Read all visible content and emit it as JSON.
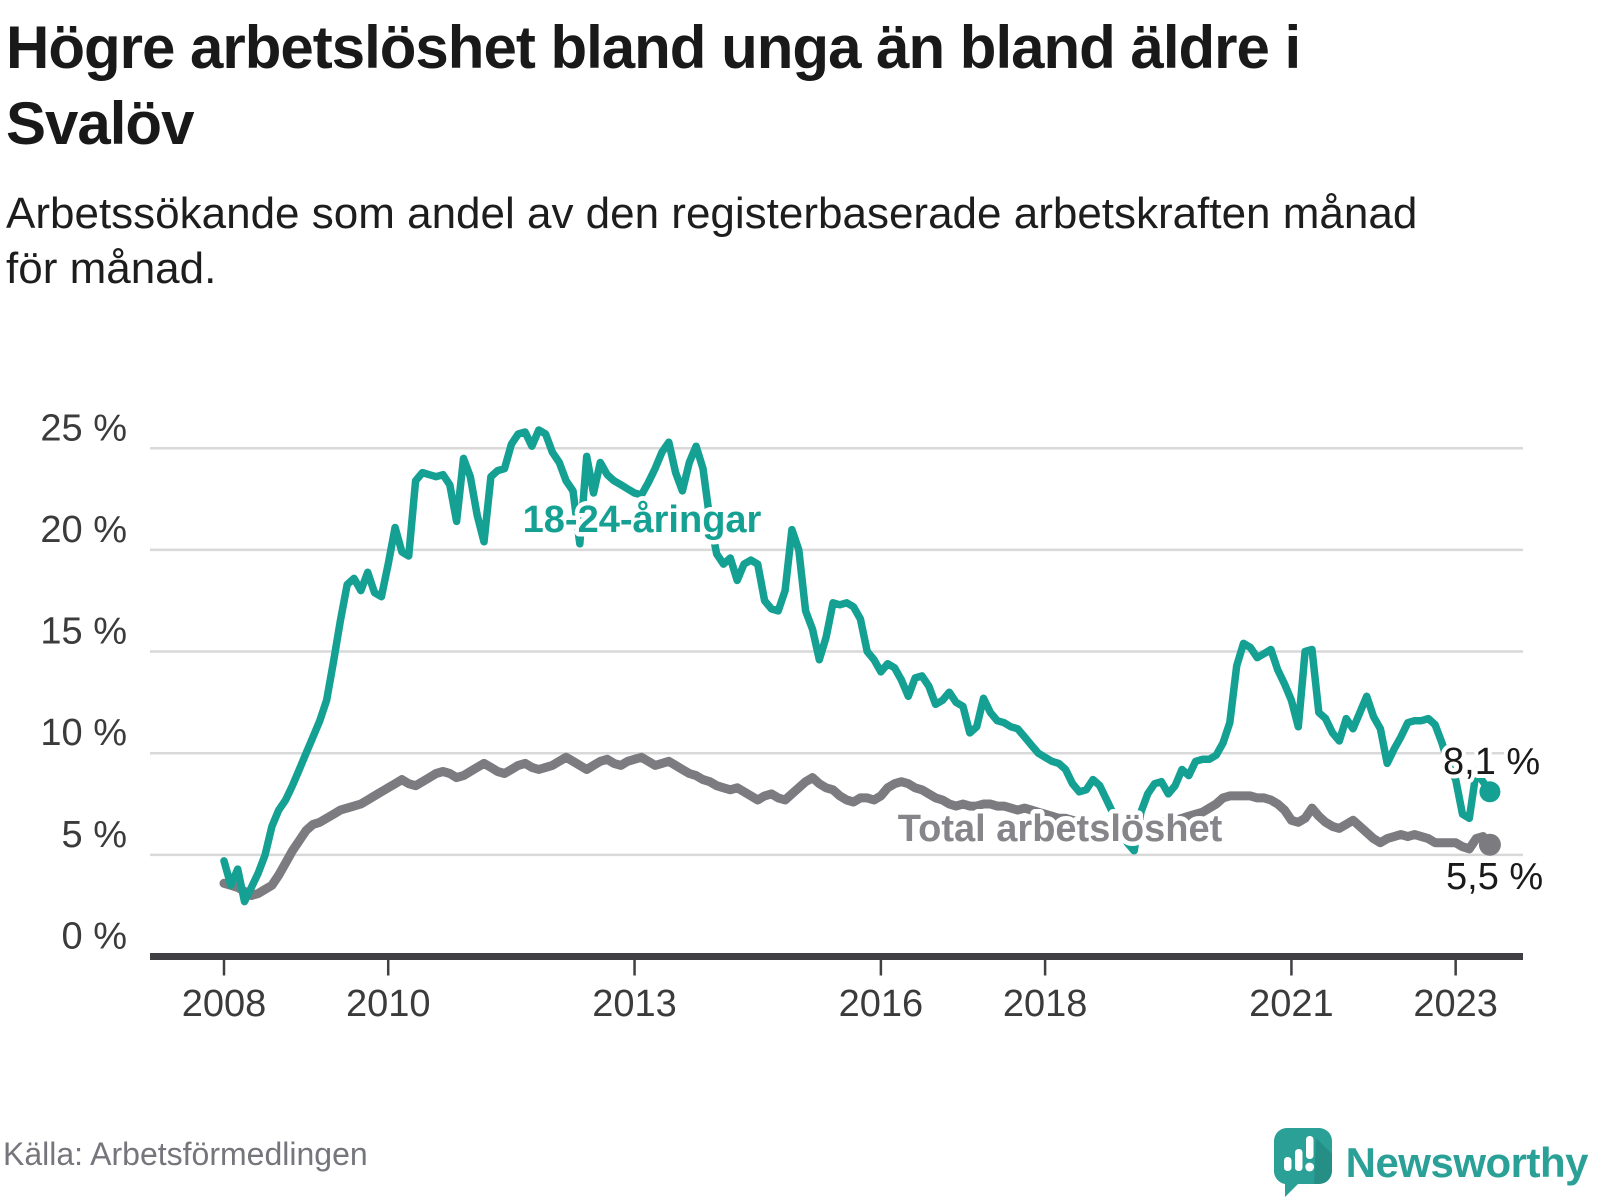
{
  "header": {
    "title_lines": [
      "Högre arbetslöshet bland unga än bland äldre i",
      "Svalöv"
    ],
    "subtitle_lines": [
      "Arbetssökande som andel av den registerbaserade arbetskraften månad",
      "för månad."
    ]
  },
  "footer": {
    "source": "Källa: Arbetsförmedlingen",
    "brand_name": "Newsworthy",
    "brand_color": "#2aa096"
  },
  "chart_data": {
    "type": "line",
    "x_start": {
      "year": 2008,
      "month": 1
    },
    "x_end": {
      "year": 2023,
      "month": 6
    },
    "x_tick_years": [
      2008,
      2010,
      2013,
      2016,
      2018,
      2021,
      2023
    ],
    "y_ticks": [
      {
        "value": 0,
        "label": "0 %"
      },
      {
        "value": 5,
        "label": "5 %"
      },
      {
        "value": 10,
        "label": "10 %"
      },
      {
        "value": 15,
        "label": "15 %"
      },
      {
        "value": 20,
        "label": "20 %"
      },
      {
        "value": 25,
        "label": "25 %"
      }
    ],
    "ylim": [
      0,
      26.5
    ],
    "grid": "horizontal",
    "colors": {
      "gridline": "#d9d9d9",
      "axis": "#3f3f44",
      "tick_label": "#3b3b3b",
      "end_label": "#1a1a1a"
    },
    "series": [
      {
        "name": "18-24-åringar",
        "color": "#14a092",
        "label_color": "#14a092",
        "end_label": "8,1 %",
        "end_value": 8.1,
        "values": [
          4.7,
          3.5,
          4.3,
          2.7,
          3.4,
          4.1,
          5.0,
          6.4,
          7.2,
          7.7,
          8.4,
          9.2,
          10.0,
          10.8,
          11.6,
          12.6,
          14.5,
          16.5,
          18.3,
          18.6,
          18.0,
          18.9,
          17.9,
          17.7,
          19.3,
          21.1,
          19.9,
          19.7,
          23.4,
          23.8,
          23.7,
          23.6,
          23.7,
          23.2,
          21.4,
          24.5,
          23.6,
          21.7,
          20.4,
          23.6,
          23.9,
          24.0,
          25.2,
          25.7,
          25.8,
          25.1,
          25.9,
          25.7,
          24.8,
          24.3,
          23.4,
          22.9,
          20.3,
          24.6,
          22.8,
          24.3,
          23.7,
          23.4,
          23.2,
          23.0,
          22.8,
          22.7,
          23.3,
          24.0,
          24.8,
          25.3,
          23.8,
          22.9,
          24.3,
          25.1,
          24.0,
          21.5,
          19.8,
          19.3,
          19.6,
          18.5,
          19.3,
          19.5,
          19.3,
          17.5,
          17.1,
          17.0,
          18.0,
          21.0,
          20.0,
          17.0,
          16.1,
          14.6,
          15.7,
          17.4,
          17.3,
          17.4,
          17.2,
          16.6,
          15.0,
          14.6,
          14.0,
          14.4,
          14.2,
          13.6,
          12.8,
          13.7,
          13.8,
          13.3,
          12.4,
          12.6,
          13.0,
          12.5,
          12.3,
          11.0,
          11.3,
          12.7,
          12.0,
          11.6,
          11.5,
          11.3,
          11.2,
          10.8,
          10.4,
          10.0,
          9.8,
          9.6,
          9.5,
          9.2,
          8.5,
          8.1,
          8.2,
          8.7,
          8.4,
          7.7,
          7.0,
          6.3,
          5.6,
          5.2,
          7.1,
          8.0,
          8.5,
          8.6,
          8.0,
          8.4,
          9.2,
          8.9,
          9.6,
          9.7,
          9.7,
          9.9,
          10.5,
          11.5,
          14.3,
          15.4,
          15.2,
          14.7,
          14.9,
          15.1,
          14.1,
          13.4,
          12.6,
          11.3,
          15.0,
          15.1,
          12.0,
          11.7,
          11.0,
          10.6,
          11.7,
          11.2,
          12.0,
          12.8,
          11.8,
          11.2,
          9.5,
          10.2,
          10.8,
          11.5,
          11.6,
          11.6,
          11.7,
          11.4,
          10.5,
          9.4,
          8.7,
          7.0,
          6.8,
          9.1,
          8.6,
          8.1
        ]
      },
      {
        "name": "Total arbetslöshet",
        "color": "#7b7b80",
        "label_color": "#85858a",
        "end_label": "5,5 %",
        "end_value": 5.5,
        "values": [
          3.6,
          3.5,
          3.4,
          3.2,
          3.0,
          3.1,
          3.3,
          3.5,
          4.0,
          4.6,
          5.2,
          5.7,
          6.2,
          6.5,
          6.6,
          6.8,
          7.0,
          7.2,
          7.3,
          7.4,
          7.5,
          7.7,
          7.9,
          8.1,
          8.3,
          8.5,
          8.7,
          8.5,
          8.4,
          8.6,
          8.8,
          9.0,
          9.1,
          9.0,
          8.8,
          8.9,
          9.1,
          9.3,
          9.5,
          9.3,
          9.1,
          9.0,
          9.2,
          9.4,
          9.5,
          9.3,
          9.2,
          9.3,
          9.4,
          9.6,
          9.8,
          9.6,
          9.4,
          9.2,
          9.4,
          9.6,
          9.7,
          9.5,
          9.4,
          9.6,
          9.7,
          9.8,
          9.6,
          9.4,
          9.5,
          9.6,
          9.4,
          9.2,
          9.0,
          8.9,
          8.7,
          8.6,
          8.4,
          8.3,
          8.2,
          8.3,
          8.1,
          7.9,
          7.7,
          7.9,
          8.0,
          7.8,
          7.7,
          8.0,
          8.3,
          8.6,
          8.8,
          8.5,
          8.3,
          8.2,
          7.9,
          7.7,
          7.6,
          7.8,
          7.8,
          7.7,
          7.9,
          8.3,
          8.5,
          8.6,
          8.5,
          8.3,
          8.2,
          8.0,
          7.8,
          7.7,
          7.5,
          7.4,
          7.5,
          7.4,
          7.4,
          7.5,
          7.5,
          7.4,
          7.4,
          7.3,
          7.2,
          7.3,
          7.2,
          7.1,
          7.0,
          6.9,
          6.8,
          6.8,
          6.7,
          6.6,
          6.6,
          6.5,
          6.5,
          6.4,
          6.4,
          6.5,
          6.5,
          6.4,
          6.4,
          6.5,
          6.5,
          6.6,
          6.6,
          6.7,
          6.8,
          6.9,
          7.0,
          7.1,
          7.3,
          7.5,
          7.8,
          7.9,
          7.9,
          7.9,
          7.9,
          7.8,
          7.8,
          7.7,
          7.5,
          7.2,
          6.7,
          6.6,
          6.8,
          7.3,
          6.9,
          6.6,
          6.4,
          6.3,
          6.5,
          6.7,
          6.4,
          6.1,
          5.8,
          5.6,
          5.8,
          5.9,
          6.0,
          5.9,
          6.0,
          5.9,
          5.8,
          5.6,
          5.6,
          5.6,
          5.6,
          5.4,
          5.3,
          5.8,
          5.9,
          5.5
        ]
      }
    ]
  }
}
